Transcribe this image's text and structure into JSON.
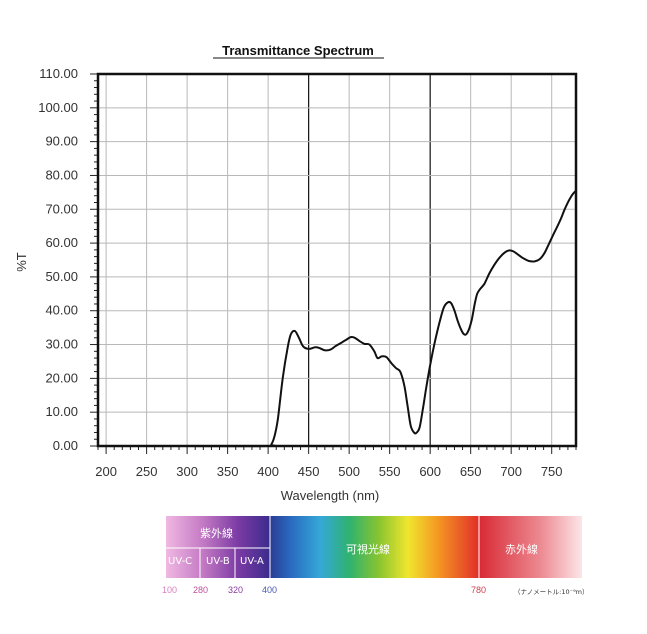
{
  "chart_data": {
    "type": "line",
    "title": "Transmittance Spectrum",
    "xlabel": "Wavelength (nm)",
    "ylabel": "%T",
    "xlim": [
      190,
      780
    ],
    "ylim": [
      0,
      110
    ],
    "x_ticks": [
      200,
      250,
      300,
      350,
      400,
      450,
      500,
      550,
      600,
      650,
      700,
      750
    ],
    "x_tick_labels": [
      "200",
      "250",
      "300",
      "350",
      "400",
      "450",
      "500",
      "550",
      "600",
      "650",
      "700",
      "750"
    ],
    "y_ticks": [
      0,
      10,
      20,
      30,
      40,
      50,
      60,
      70,
      80,
      90,
      100,
      110
    ],
    "y_tick_labels": [
      "0.00",
      "10.00",
      "20.00",
      "30.00",
      "40.00",
      "50.00",
      "60.00",
      "70.00",
      "80.00",
      "90.00",
      "100.00",
      "110.00"
    ],
    "grid": true,
    "series": [
      {
        "x": [
          190,
          300,
          400,
          404,
          408,
          412,
          418,
          424,
          428,
          433,
          438,
          443,
          450,
          458,
          463,
          470,
          477,
          483,
          490,
          497,
          502,
          507,
          513,
          519,
          525,
          531,
          535,
          540,
          546,
          552,
          558,
          563,
          568,
          572,
          576,
          580,
          583,
          587,
          591,
          595,
          600,
          606,
          612,
          617,
          622,
          626,
          630,
          634,
          638,
          642,
          646,
          651,
          655,
          658,
          662,
          667,
          673,
          679,
          685,
          691,
          697,
          703,
          709,
          715,
          722,
          729,
          735,
          741,
          746,
          751,
          756,
          761,
          766,
          771,
          776,
          780
        ],
        "values": [
          0,
          0,
          0,
          0.5,
          3,
          8,
          20,
          29,
          33,
          34,
          32,
          29.5,
          28.7,
          29.2,
          29,
          28.3,
          28.5,
          29.5,
          30.5,
          31.5,
          32.2,
          32,
          31,
          30.2,
          30,
          28,
          26,
          26.5,
          26.3,
          24.5,
          23,
          22,
          18,
          12,
          6,
          4,
          3.9,
          5.5,
          11,
          17,
          24,
          31,
          37,
          41,
          42.5,
          42.2,
          40,
          37,
          34.5,
          33,
          33.5,
          37,
          42,
          45,
          46.5,
          48,
          51,
          53.5,
          55.5,
          57,
          57.8,
          57.5,
          56.5,
          55.5,
          54.7,
          54.6,
          55.2,
          57,
          59.5,
          62,
          64.5,
          67,
          70,
          72.5,
          74.5,
          75.5
        ]
      }
    ]
  },
  "spectrum_bar": {
    "uv_label": "紫外線",
    "uv_sub": [
      "UV-C",
      "UV-B",
      "UV-A"
    ],
    "visible_label": "可視光線",
    "ir_label": "赤外線",
    "wavelengths": [
      {
        "label": "100",
        "color": "#d97fc0"
      },
      {
        "label": "280",
        "color": "#c0509a"
      },
      {
        "label": "320",
        "color": "#8a3aa0"
      },
      {
        "label": "400",
        "color": "#4a5ab0"
      },
      {
        "label": "780",
        "color": "#d04050"
      }
    ],
    "unit_note": "（ナノメートル:10⁻⁹m）"
  }
}
